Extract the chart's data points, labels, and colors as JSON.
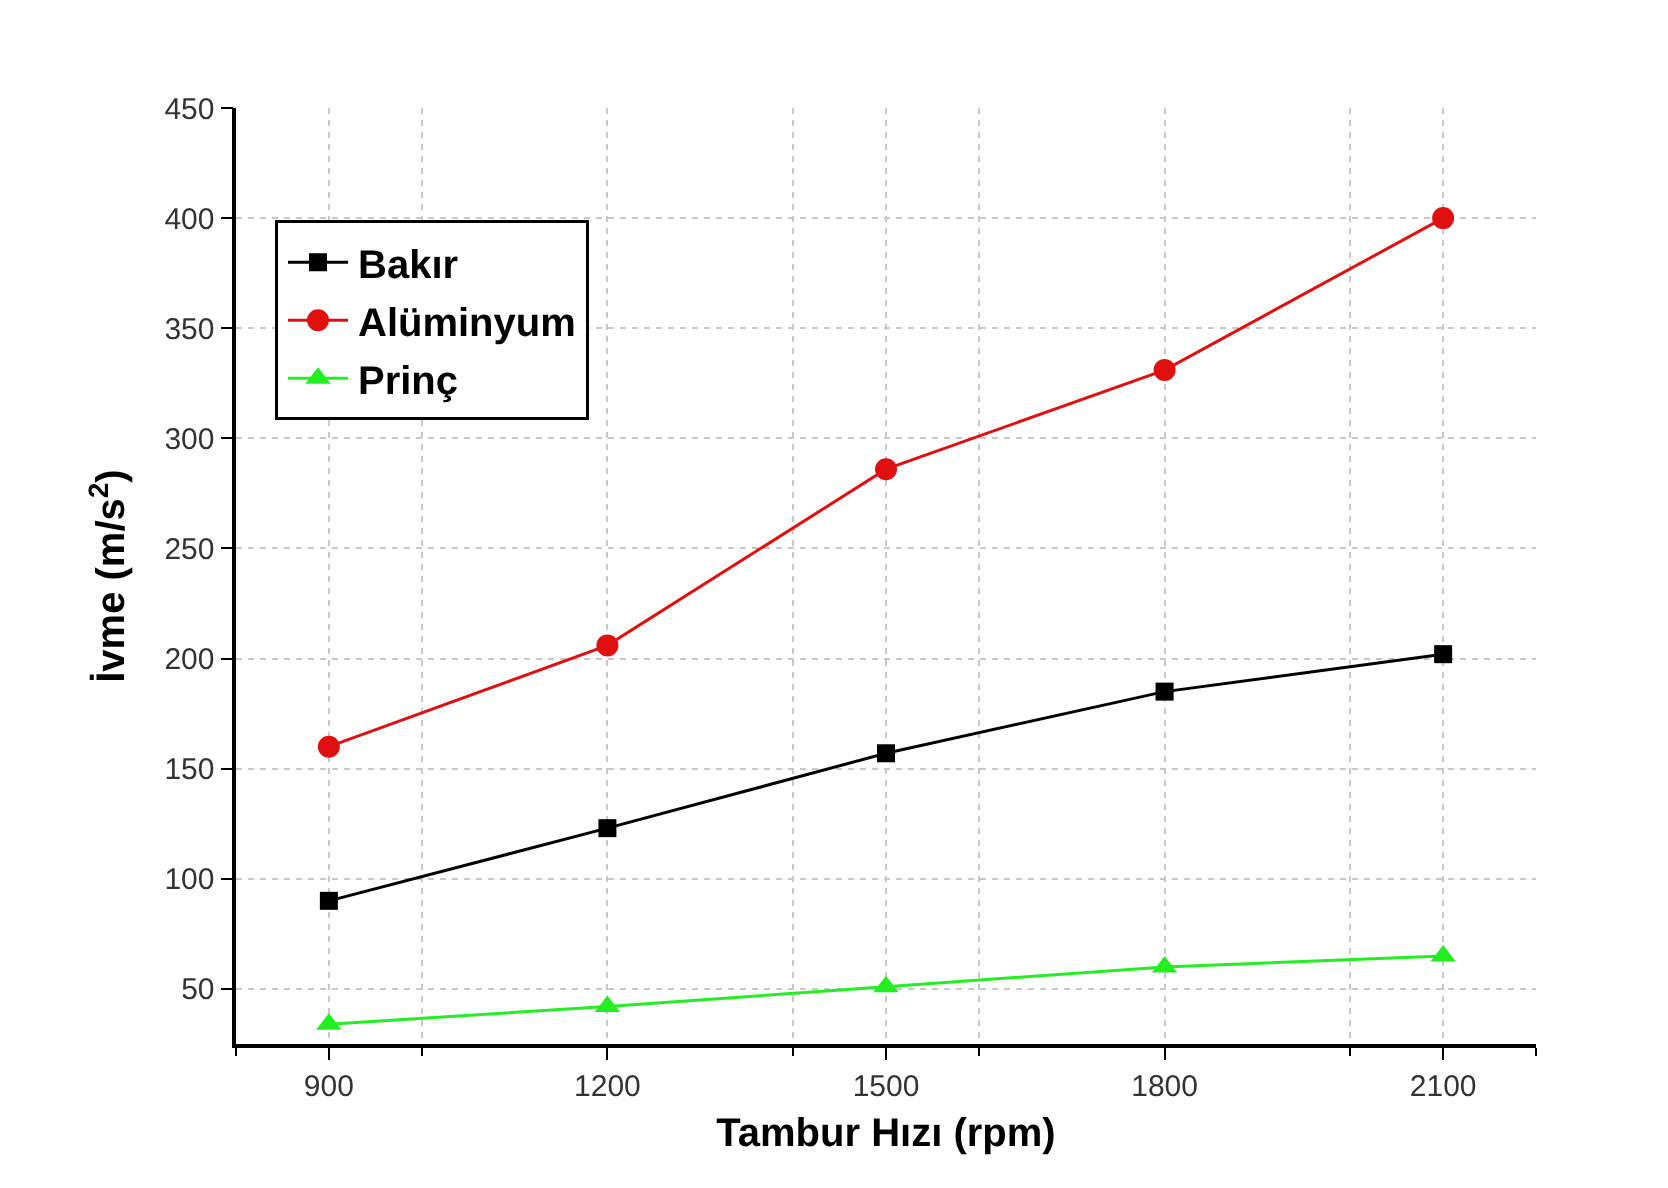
{
  "chart_data": {
    "type": "line",
    "xlabel": "Tambur Hızı (rpm)",
    "ylabel": "İvme (m/s$^{2}$)",
    "x": [
      900,
      1200,
      1500,
      1800,
      2100
    ],
    "series": [
      {
        "name": "Bakır",
        "color": "#000000",
        "marker": "square",
        "values": [
          90,
          123,
          157,
          185,
          202
        ]
      },
      {
        "name": "Alüminyum",
        "color": "#e01010",
        "marker": "circle",
        "values": [
          160,
          206,
          286,
          331,
          400
        ]
      },
      {
        "name": "Prinç",
        "color": "#22ee22",
        "marker": "triangle",
        "values": [
          34,
          42,
          51,
          60,
          65
        ]
      }
    ],
    "xlim": [
      800,
      2200
    ],
    "xticks": [
      900,
      1200,
      1500,
      1800,
      2100
    ],
    "ylim": [
      25,
      450
    ],
    "yticks": [
      50,
      100,
      150,
      200,
      250,
      300,
      350,
      400,
      450
    ],
    "grid": true,
    "legend": "top left",
    "line_style": "solid"
  }
}
